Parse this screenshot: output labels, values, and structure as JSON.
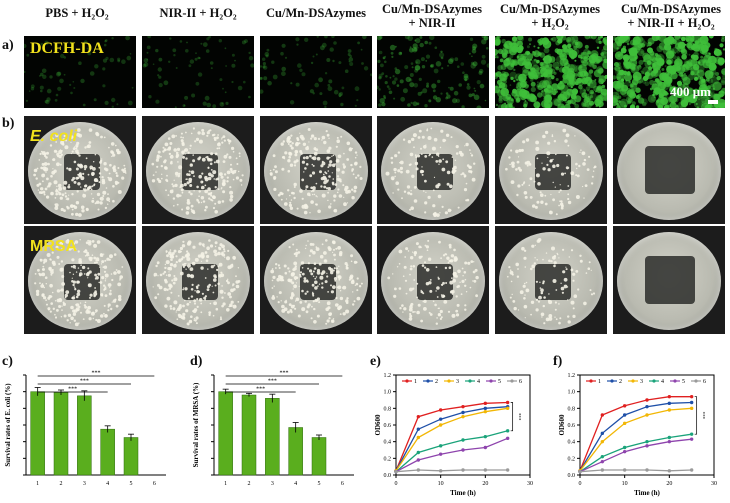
{
  "headers": [
    {
      "line1": "PBS + H₂O₂",
      "line2": ""
    },
    {
      "line1": "NIR-II + H₂O₂",
      "line2": ""
    },
    {
      "line1": "Cu/Mn-DSAzymes",
      "line2": ""
    },
    {
      "line1": "Cu/Mn-DSAzymes",
      "line2": "+ NIR-II"
    },
    {
      "line1": "Cu/Mn-DSAzymes",
      "line2": "+ H₂O₂"
    },
    {
      "line1": "Cu/Mn-DSAzymes",
      "line2": "+ NIR-II + H₂O₂"
    }
  ],
  "panel_labels": {
    "a": "a)",
    "b": "b)",
    "c": "c)",
    "d": "d)",
    "e": "e)",
    "f": "f)"
  },
  "fluorescence": {
    "stain_label": "DCFH-DA",
    "scale_bar": "400 μm",
    "intensity": [
      0.05,
      0.06,
      0.07,
      0.22,
      0.85,
      0.92
    ],
    "color": "#3fbf3a"
  },
  "plates": {
    "row_labels": [
      "E. coli",
      "MRSA"
    ],
    "colony_density": [
      [
        1.0,
        0.95,
        0.9,
        0.55,
        0.45,
        0.0
      ],
      [
        1.0,
        0.95,
        0.9,
        0.6,
        0.45,
        0.0
      ]
    ]
  },
  "chart_data": [
    {
      "type": "bar",
      "panel": "c)",
      "ylabel": "Survival rates of E. coli (%)",
      "categories": [
        "1",
        "2",
        "3",
        "4",
        "5",
        "6"
      ],
      "values": [
        100,
        99,
        95,
        55,
        45,
        0
      ],
      "errors": [
        5,
        3,
        6,
        4,
        4,
        0
      ],
      "ylim": [
        0,
        120
      ],
      "yticks": [
        0,
        20,
        40,
        60,
        80,
        100,
        120
      ],
      "significance": [
        "***",
        "***",
        "***"
      ],
      "bar_color": "#5aae1e"
    },
    {
      "type": "bar",
      "panel": "d)",
      "ylabel": "Survival rates of MRSA (%)",
      "categories": [
        "1",
        "2",
        "3",
        "4",
        "5",
        "6"
      ],
      "values": [
        100,
        96,
        92,
        57,
        45,
        0
      ],
      "errors": [
        3,
        2,
        5,
        6,
        3,
        0
      ],
      "ylim": [
        0,
        120
      ],
      "yticks": [
        0,
        20,
        40,
        60,
        80,
        100,
        120
      ],
      "significance": [
        "***",
        "***",
        "***"
      ],
      "bar_color": "#5aae1e"
    },
    {
      "type": "line",
      "panel": "e)",
      "xlabel": "Time (h)",
      "ylabel": "OD600",
      "x": [
        0,
        5,
        10,
        15,
        20,
        25
      ],
      "xlim": [
        0,
        30
      ],
      "ylim": [
        0,
        1.2
      ],
      "xticks": [
        0,
        10,
        20,
        30
      ],
      "yticks": [
        0.0,
        0.2,
        0.4,
        0.6,
        0.8,
        1.0,
        1.2
      ],
      "significance": "***",
      "series": [
        {
          "name": "1",
          "color": "#e02020",
          "values": [
            0.05,
            0.7,
            0.78,
            0.82,
            0.86,
            0.87
          ]
        },
        {
          "name": "2",
          "color": "#1e4fa8",
          "values": [
            0.05,
            0.55,
            0.67,
            0.75,
            0.8,
            0.82
          ]
        },
        {
          "name": "3",
          "color": "#f2b705",
          "values": [
            0.05,
            0.45,
            0.6,
            0.7,
            0.76,
            0.8
          ]
        },
        {
          "name": "4",
          "color": "#1aa37a",
          "values": [
            0.04,
            0.27,
            0.35,
            0.42,
            0.46,
            0.53
          ]
        },
        {
          "name": "5",
          "color": "#8e44ad",
          "values": [
            0.04,
            0.18,
            0.25,
            0.3,
            0.33,
            0.44
          ]
        },
        {
          "name": "6",
          "color": "#9a9a9a",
          "values": [
            0.04,
            0.06,
            0.05,
            0.06,
            0.06,
            0.06
          ]
        }
      ]
    },
    {
      "type": "line",
      "panel": "f)",
      "xlabel": "Time (h)",
      "ylabel": "OD600",
      "x": [
        0,
        5,
        10,
        15,
        20,
        25
      ],
      "xlim": [
        0,
        30
      ],
      "ylim": [
        0,
        1.2
      ],
      "xticks": [
        0,
        10,
        20,
        30
      ],
      "yticks": [
        0.0,
        0.2,
        0.4,
        0.6,
        0.8,
        1.0,
        1.2
      ],
      "ytick_labels": [
        "0.0",
        "0.2",
        "0.4",
        "0.6",
        "0.8",
        "1.0",
        "1.2"
      ],
      "significance": "***",
      "series": [
        {
          "name": "1",
          "color": "#e02020",
          "values": [
            0.05,
            0.72,
            0.83,
            0.9,
            0.94,
            0.94
          ]
        },
        {
          "name": "2",
          "color": "#1e4fa8",
          "values": [
            0.05,
            0.5,
            0.72,
            0.82,
            0.86,
            0.87
          ]
        },
        {
          "name": "3",
          "color": "#f2b705",
          "values": [
            0.05,
            0.4,
            0.62,
            0.72,
            0.78,
            0.8
          ]
        },
        {
          "name": "4",
          "color": "#1aa37a",
          "values": [
            0.04,
            0.22,
            0.33,
            0.4,
            0.45,
            0.49
          ]
        },
        {
          "name": "5",
          "color": "#8e44ad",
          "values": [
            0.04,
            0.16,
            0.28,
            0.35,
            0.4,
            0.43
          ]
        },
        {
          "name": "6",
          "color": "#9a9a9a",
          "values": [
            0.04,
            0.06,
            0.06,
            0.06,
            0.05,
            0.06
          ]
        }
      ]
    }
  ]
}
